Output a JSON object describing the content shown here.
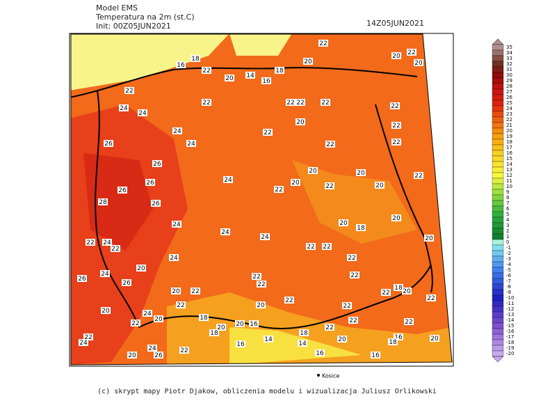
{
  "header": {
    "model": "Model EMS",
    "variable": "Temperatura na 2m (st.C)",
    "init": "Init: 00Z05JUN2021",
    "valid": "14Z05JUN2021"
  },
  "colorbar": {
    "labels": [
      35,
      34,
      33,
      32,
      31,
      30,
      29,
      28,
      27,
      26,
      25,
      24,
      23,
      22,
      21,
      20,
      19,
      18,
      17,
      16,
      15,
      14,
      13,
      12,
      11,
      10,
      9,
      8,
      7,
      6,
      5,
      4,
      3,
      2,
      1,
      0,
      -1,
      -2,
      -3,
      -4,
      -5,
      -6,
      -7,
      -8,
      -9,
      -10,
      -11,
      -12,
      -13,
      -14,
      -15,
      -16,
      -17,
      -18,
      -19,
      -20
    ]
  },
  "map_labels": [
    18,
    16,
    22,
    20,
    14,
    16,
    18,
    20,
    22,
    20,
    22,
    20,
    22,
    24,
    24,
    22,
    22,
    22,
    22,
    22,
    20,
    22,
    24,
    24,
    22,
    22,
    22,
    26,
    26,
    20,
    20,
    22,
    24,
    26,
    22,
    20,
    22,
    20,
    26,
    28,
    26,
    20,
    18,
    20,
    24,
    24,
    24,
    20,
    22,
    24,
    22,
    22,
    22,
    24,
    22,
    20,
    24,
    22,
    22,
    26,
    26,
    22,
    20,
    22,
    22,
    18,
    20,
    22,
    20,
    22,
    20,
    22,
    22,
    24,
    22,
    18,
    20,
    16,
    22,
    20,
    22,
    22,
    24,
    20,
    18,
    22,
    20,
    18,
    14,
    14,
    16,
    16,
    18,
    20,
    24,
    22,
    20,
    26,
    16,
    16
  ],
  "city": "Kosice",
  "footer": "(c) skrypt mapy Piotr Djakow, obliczenia modelu i wizualizacja Juliusz Orlikowski"
}
